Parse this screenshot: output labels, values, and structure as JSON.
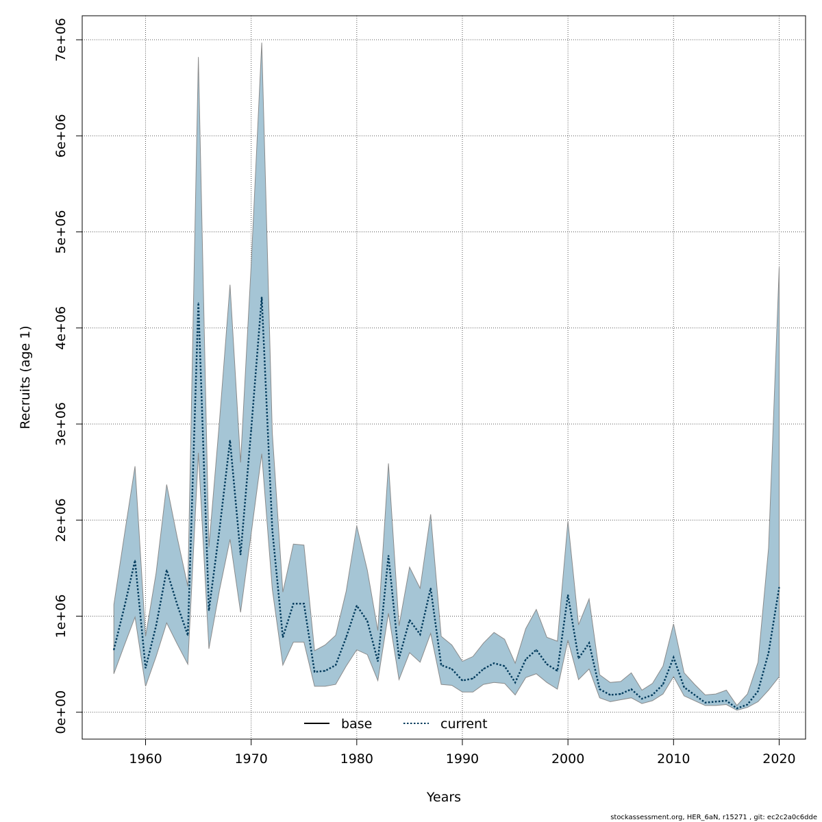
{
  "chart_data": {
    "type": "area",
    "xlabel": "Years",
    "ylabel": "Recruits (age 1)",
    "xlim": [
      1954,
      2022.5
    ],
    "ylim": [
      -280000,
      7250000
    ],
    "x_ticks": [
      1960,
      1970,
      1980,
      1990,
      2000,
      2010,
      2020
    ],
    "x_tick_labels": [
      "1960",
      "1970",
      "1980",
      "1990",
      "2000",
      "2010",
      "2020"
    ],
    "y_ticks": [
      0,
      1000000,
      2000000,
      3000000,
      4000000,
      5000000,
      6000000,
      7000000
    ],
    "y_tick_labels": [
      "0e+00",
      "1e+06",
      "2e+06",
      "3e+06",
      "4e+06",
      "5e+06",
      "6e+06",
      "7e+06"
    ],
    "grid": true,
    "colors": {
      "band": "#a5c5d5",
      "band_edge": "#8a8a8a",
      "current": "#003a5c",
      "base": "#000000",
      "grid": "#555555"
    },
    "x": [
      1957,
      1958,
      1959,
      1960,
      1961,
      1962,
      1963,
      1964,
      1965,
      1966,
      1967,
      1968,
      1969,
      1970,
      1971,
      1972,
      1973,
      1974,
      1975,
      1976,
      1977,
      1978,
      1979,
      1980,
      1981,
      1982,
      1983,
      1984,
      1985,
      1986,
      1987,
      1988,
      1989,
      1990,
      1991,
      1992,
      1993,
      1994,
      1995,
      1996,
      1997,
      1998,
      1999,
      2000,
      2001,
      2002,
      2003,
      2004,
      2005,
      2006,
      2007,
      2008,
      2009,
      2010,
      2011,
      2012,
      2013,
      2014,
      2015,
      2016,
      2017,
      2018,
      2019,
      2020
    ],
    "series": [
      {
        "name": "current",
        "style": "dotted",
        "values": [
          650000,
          1100000,
          1580000,
          460000,
          900000,
          1480000,
          1120000,
          800000,
          4260000,
          1060000,
          1900000,
          2830000,
          1640000,
          2940000,
          4320000,
          1900000,
          780000,
          1130000,
          1130000,
          420000,
          430000,
          490000,
          780000,
          1110000,
          950000,
          530000,
          1630000,
          560000,
          960000,
          810000,
          1290000,
          490000,
          450000,
          330000,
          350000,
          450000,
          510000,
          480000,
          310000,
          550000,
          650000,
          500000,
          430000,
          1220000,
          560000,
          720000,
          240000,
          180000,
          190000,
          240000,
          140000,
          180000,
          290000,
          570000,
          260000,
          180000,
          100000,
          110000,
          120000,
          40000,
          80000,
          220000,
          620000,
          1300000
        ]
      }
    ],
    "band": {
      "lower": [
        400000,
        700000,
        990000,
        270000,
        580000,
        930000,
        710000,
        500000,
        2700000,
        660000,
        1270000,
        1800000,
        1040000,
        1860000,
        2690000,
        1280000,
        490000,
        730000,
        730000,
        270000,
        270000,
        290000,
        480000,
        650000,
        600000,
        330000,
        1030000,
        340000,
        620000,
        520000,
        820000,
        290000,
        280000,
        210000,
        210000,
        290000,
        310000,
        300000,
        180000,
        360000,
        400000,
        310000,
        240000,
        750000,
        340000,
        450000,
        150000,
        110000,
        130000,
        150000,
        90000,
        120000,
        190000,
        370000,
        170000,
        120000,
        70000,
        70000,
        80000,
        20000,
        50000,
        110000,
        230000,
        370000
      ],
      "upper": [
        1120000,
        1850000,
        2560000,
        790000,
        1450000,
        2370000,
        1820000,
        1310000,
        6820000,
        1720000,
        3030000,
        4450000,
        2600000,
        4660000,
        6970000,
        2910000,
        1250000,
        1750000,
        1740000,
        640000,
        700000,
        800000,
        1260000,
        1940000,
        1480000,
        850000,
        2590000,
        900000,
        1510000,
        1290000,
        2060000,
        790000,
        700000,
        530000,
        580000,
        720000,
        830000,
        760000,
        510000,
        870000,
        1070000,
        780000,
        740000,
        1990000,
        910000,
        1180000,
        390000,
        310000,
        320000,
        410000,
        230000,
        300000,
        480000,
        920000,
        410000,
        290000,
        180000,
        190000,
        230000,
        70000,
        190000,
        520000,
        1710000,
        4630000
      ]
    },
    "legend": {
      "position": "bottom",
      "entries": [
        {
          "label": "base",
          "style": "solid",
          "color": "#000000"
        },
        {
          "label": "current",
          "style": "dotted",
          "color": "#003a5c"
        }
      ]
    },
    "footer": "stockassessment.org, HER_6aN, r15271 , git: ec2c2a0c6dde"
  }
}
